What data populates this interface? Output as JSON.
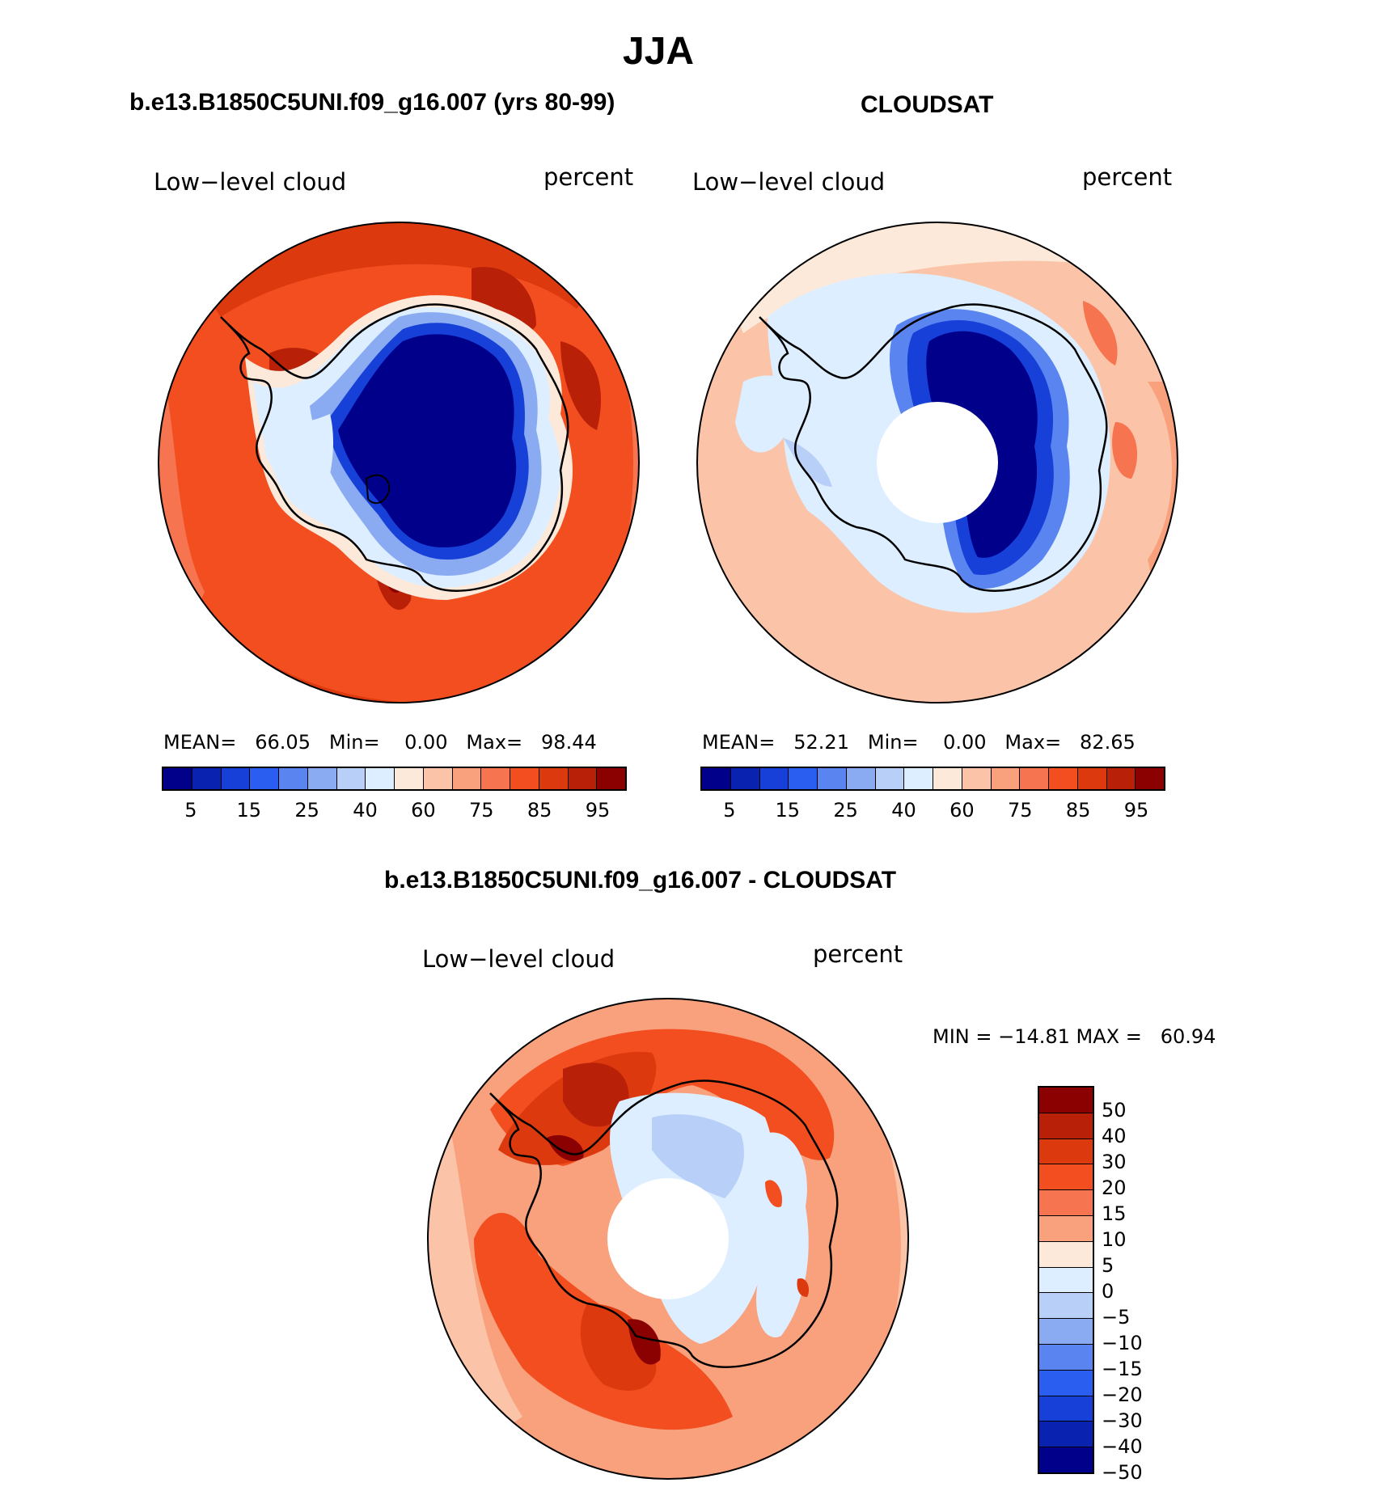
{
  "figure": {
    "season": "JJA",
    "panels": [
      {
        "title": "b.e13.B1850C5UNI.f09_g16.007 (yrs 80-99)",
        "variable": "Low−level cloud",
        "units": "percent",
        "mean_label": "MEAN=",
        "mean": "66.05",
        "min_label": "Min=",
        "min": "0.00",
        "max_label": "Max=",
        "max": "98.44"
      },
      {
        "title": "CLOUDSAT",
        "variable": "Low−level cloud",
        "units": "percent",
        "mean_label": "MEAN=",
        "mean": "52.21",
        "min_label": "Min=",
        "min": "0.00",
        "max_label": "Max=",
        "max": "82.65"
      },
      {
        "title": "b.e13.B1850C5UNI.f09_g16.007 - CLOUDSAT",
        "variable": "Low−level cloud",
        "units": "percent",
        "minmax_text": "MIN = −14.81 MAX =   60.94"
      }
    ],
    "colorbar_abs": {
      "colors": [
        "#00008b",
        "#0a22b0",
        "#1640d8",
        "#2a5ef0",
        "#5a85f0",
        "#8aaaf2",
        "#b8d0f8",
        "#dceeff",
        "#fde9d9",
        "#fbc4a8",
        "#f9a07c",
        "#f77450",
        "#f24e20",
        "#dc3a0e",
        "#b82008",
        "#8b0000"
      ],
      "tick_labels": [
        "5",
        "15",
        "25",
        "40",
        "60",
        "75",
        "85",
        "95"
      ]
    },
    "colorbar_diff": {
      "colors": [
        "#8b0000",
        "#b82008",
        "#dc3a0e",
        "#f24e20",
        "#f77450",
        "#f9a07c",
        "#fde9d9",
        "#dceeff",
        "#b8d0f8",
        "#8aaaf2",
        "#5a85f0",
        "#2a5ef0",
        "#1640d8",
        "#0a22b0",
        "#00008b"
      ],
      "tick_labels": [
        "50",
        "40",
        "30",
        "20",
        "15",
        "10",
        "5",
        "0",
        "−5",
        "−10",
        "−15",
        "−20",
        "−30",
        "−40",
        "−50"
      ]
    }
  }
}
